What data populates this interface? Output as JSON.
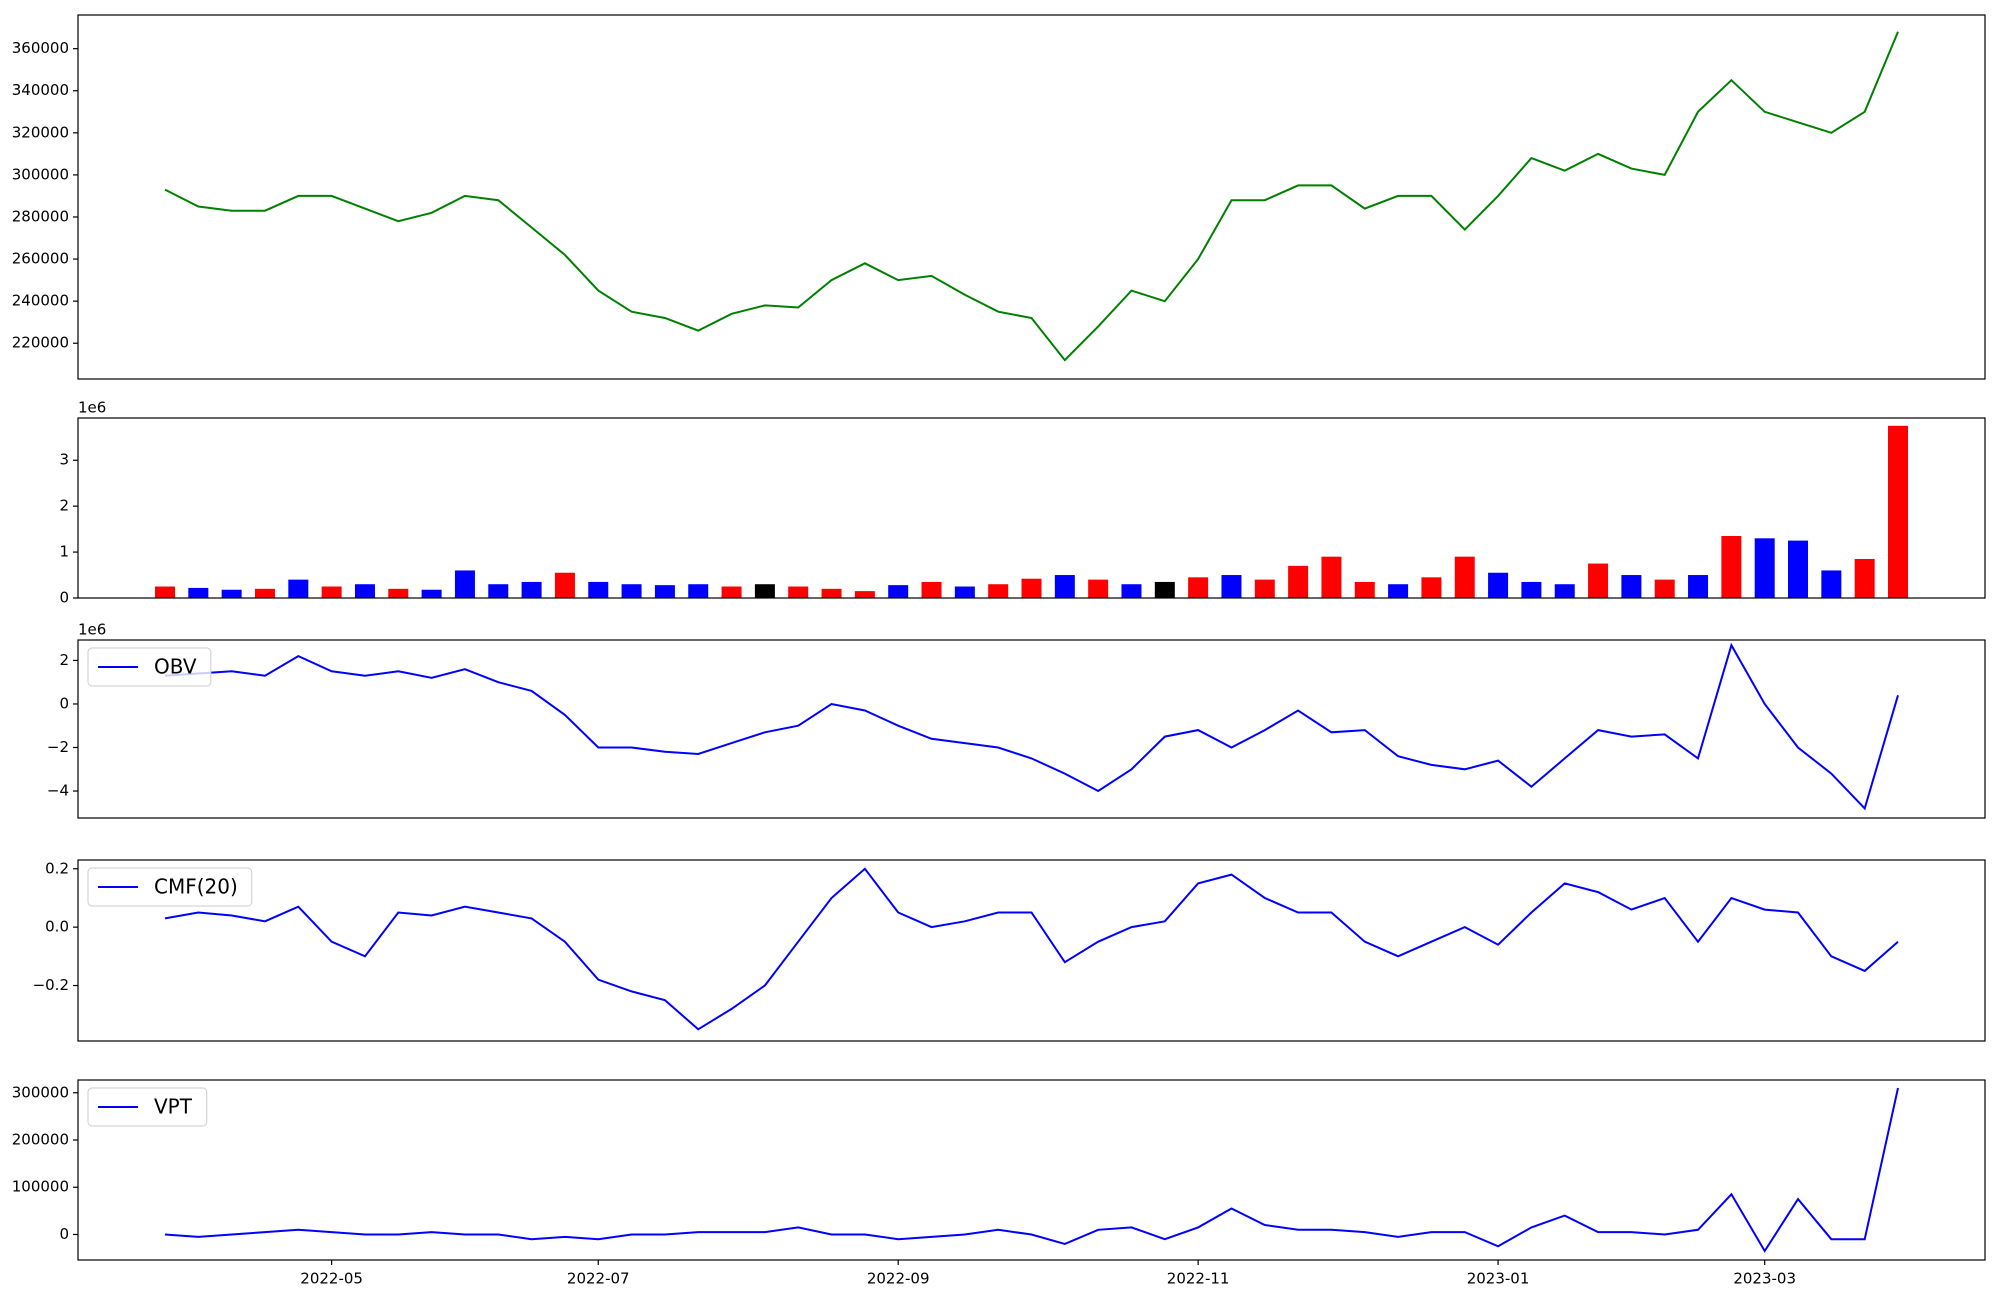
{
  "chart_data": [
    {
      "type": "line",
      "series": [
        {
          "color": "green",
          "values": [
            293000,
            285000,
            283000,
            283000,
            290000,
            290000,
            284000,
            278000,
            282000,
            290000,
            288000,
            275000,
            262000,
            245000,
            235000,
            232000,
            226000,
            234000,
            238000,
            237000,
            250000,
            258000,
            250000,
            252000,
            243000,
            235000,
            232000,
            212000,
            228000,
            245000,
            240000,
            260000,
            288000,
            288000,
            295000,
            295000,
            284000,
            290000,
            290000,
            274000,
            290000,
            308000,
            302000,
            310000,
            303000,
            300000,
            330000,
            345000,
            330000,
            325000,
            320000,
            330000,
            368000
          ]
        }
      ],
      "ylim": [
        203000,
        376000
      ],
      "yticks": [
        220000,
        240000,
        260000,
        280000,
        300000,
        320000,
        340000,
        360000
      ]
    },
    {
      "type": "bar",
      "y_offset_label": "1e6",
      "values": [
        0.25,
        0.22,
        0.18,
        0.2,
        0.4,
        0.25,
        0.3,
        0.2,
        0.18,
        0.6,
        0.3,
        0.35,
        0.55,
        0.35,
        0.3,
        0.28,
        0.3,
        0.25,
        0.3,
        0.25,
        0.2,
        0.15,
        0.28,
        0.35,
        0.25,
        0.3,
        0.42,
        0.5,
        0.4,
        0.3,
        0.35,
        0.45,
        0.5,
        0.4,
        0.7,
        0.9,
        0.35,
        0.3,
        0.45,
        0.9,
        0.55,
        0.35,
        0.3,
        0.75,
        0.5,
        0.4,
        0.5,
        1.35,
        1.3,
        1.25,
        0.6,
        0.85,
        3.75
      ],
      "colors": [
        "red",
        "blue",
        "blue",
        "red",
        "blue",
        "red",
        "blue",
        "red",
        "blue",
        "blue",
        "blue",
        "blue",
        "red",
        "blue",
        "blue",
        "blue",
        "blue",
        "red",
        "black",
        "red",
        "red",
        "red",
        "blue",
        "red",
        "blue",
        "red",
        "red",
        "blue",
        "red",
        "blue",
        "black",
        "red",
        "blue",
        "red",
        "red",
        "red",
        "red",
        "blue",
        "red",
        "red",
        "blue",
        "blue",
        "blue",
        "red",
        "blue",
        "red",
        "blue",
        "red",
        "blue",
        "blue",
        "blue",
        "red",
        "red"
      ],
      "ylim": [
        0,
        3.92
      ],
      "yticks": [
        0,
        1,
        2,
        3
      ]
    },
    {
      "type": "line",
      "y_offset_label": "1e6",
      "legend": "upper left",
      "series": [
        {
          "name": "OBV",
          "color": "blue",
          "values": [
            1.3,
            1.4,
            1.5,
            1.3,
            2.2,
            1.5,
            1.3,
            1.5,
            1.2,
            1.6,
            1.0,
            0.6,
            -0.5,
            -2.0,
            -2.0,
            -2.2,
            -2.3,
            -1.8,
            -1.3,
            -1.0,
            0.0,
            -0.3,
            -1.0,
            -1.6,
            -1.8,
            -2.0,
            -2.5,
            -3.2,
            -4.0,
            -3.0,
            -1.5,
            -1.2,
            -2.0,
            -1.2,
            -0.3,
            -1.3,
            -1.2,
            -2.4,
            -2.8,
            -3.0,
            -2.6,
            -3.8,
            -2.5,
            -1.2,
            -1.5,
            -1.4,
            -2.5,
            2.7,
            0.0,
            -2.0,
            -3.2,
            -4.8,
            0.4
          ]
        }
      ],
      "ylim": [
        -5.24,
        2.94
      ],
      "yticks": [
        {
          "value": -4,
          "label": "−4"
        },
        {
          "value": -2,
          "label": "−2"
        },
        0,
        2
      ]
    },
    {
      "type": "line",
      "legend": "upper left",
      "series": [
        {
          "name": "CMF(20)",
          "color": "blue",
          "values": [
            0.03,
            0.05,
            0.04,
            0.02,
            0.07,
            -0.05,
            -0.1,
            0.05,
            0.04,
            0.07,
            0.05,
            0.03,
            -0.05,
            -0.18,
            -0.22,
            -0.25,
            -0.35,
            -0.28,
            -0.2,
            -0.05,
            0.1,
            0.2,
            0.05,
            0.0,
            0.02,
            0.05,
            0.05,
            -0.12,
            -0.05,
            0.0,
            0.02,
            0.15,
            0.18,
            0.1,
            0.05,
            0.05,
            -0.05,
            -0.1,
            -0.05,
            0.0,
            -0.06,
            0.05,
            0.15,
            0.12,
            0.06,
            0.1,
            -0.05,
            0.1,
            0.06,
            0.05,
            -0.1,
            -0.15,
            -0.05
          ]
        }
      ],
      "ylim": [
        -0.39,
        0.23
      ],
      "yticks": [
        {
          "value": -0.2,
          "label": "−0.2"
        },
        {
          "value": 0,
          "label": "0.0"
        },
        {
          "value": 0.2,
          "label": "0.2"
        }
      ]
    },
    {
      "type": "line",
      "legend": "upper left",
      "series": [
        {
          "name": "VPT",
          "color": "blue",
          "values": [
            0,
            -5000,
            0,
            5000,
            10000,
            5000,
            0,
            0,
            5000,
            0,
            0,
            -10000,
            -5000,
            -10000,
            0,
            0,
            5000,
            5000,
            5000,
            15000,
            0,
            0,
            -10000,
            -5000,
            0,
            10000,
            0,
            -20000,
            10000,
            15000,
            -10000,
            15000,
            55000,
            20000,
            10000,
            10000,
            5000,
            -5000,
            5000,
            5000,
            -25000,
            15000,
            40000,
            5000,
            5000,
            0,
            10000,
            85000,
            -35000,
            75000,
            -10000,
            -10000,
            310000
          ]
        }
      ],
      "ylim": [
        -54000,
        327000
      ],
      "yticks": [
        0,
        100000,
        200000,
        300000
      ],
      "x": [
        "2022-04",
        "2022-04",
        "2022-04",
        "2022-04",
        "2022-04",
        "2022-05",
        "2022-05",
        "2022-05",
        "2022-05",
        "2022-06",
        "2022-06",
        "2022-06",
        "2022-06",
        "2022-07",
        "2022-07",
        "2022-07",
        "2022-07",
        "2022-07",
        "2022-08",
        "2022-08",
        "2022-08",
        "2022-08",
        "2022-09",
        "2022-09",
        "2022-09",
        "2022-09",
        "2022-09",
        "2022-10",
        "2022-10",
        "2022-10",
        "2022-10",
        "2022-11",
        "2022-11",
        "2022-11",
        "2022-11",
        "2022-12",
        "2022-12",
        "2022-12",
        "2022-12",
        "2022-12",
        "2023-01",
        "2023-01",
        "2023-01",
        "2023-01",
        "2023-02",
        "2023-02",
        "2023-02",
        "2023-02",
        "2023-03",
        "2023-03",
        "2023-03",
        "2023-03",
        "2023-03"
      ],
      "xticks": [
        "2022-05",
        "2022-07",
        "2022-09",
        "2022-11",
        "2023-01",
        "2023-03"
      ]
    }
  ]
}
